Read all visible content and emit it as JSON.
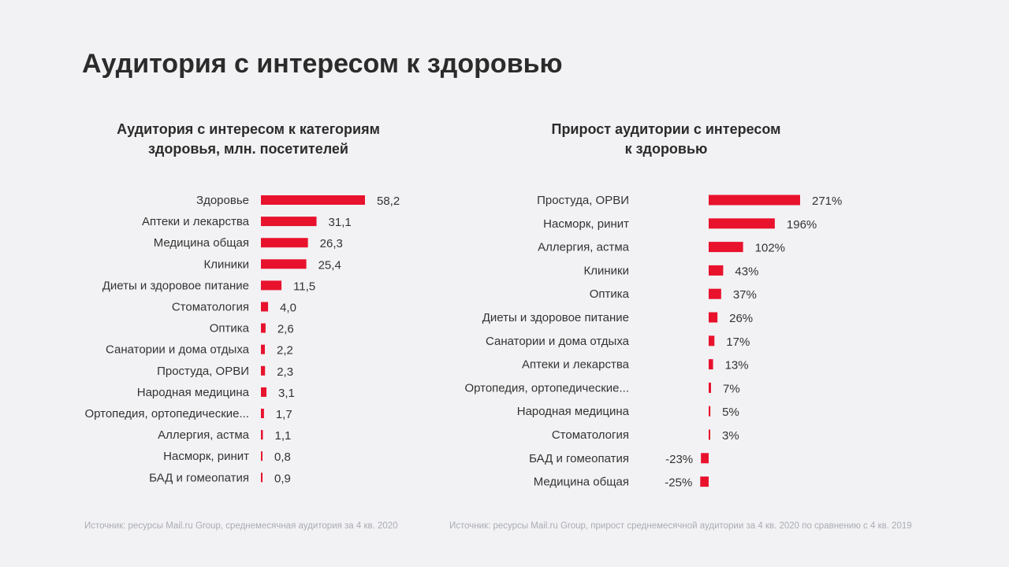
{
  "title": "Аудитория с интересом к здоровью",
  "colors": {
    "bar": "#e8122d",
    "background": "#f2f2f4"
  },
  "chart_data": [
    {
      "type": "bar",
      "orientation": "horizontal",
      "title": "Аудитория с интересом к категориям здоровья, млн. посетителей",
      "title_lines": [
        "Аудитория с интересом к категориям",
        "здоровья, млн. посетителей"
      ],
      "categories": [
        "Здоровье",
        "Аптеки и лекарства",
        "Медицина общая",
        "Клиники",
        "Диеты и здоровое питание",
        "Стоматология",
        "Оптика",
        "Санатории и дома отдыха",
        "Простуда, ОРВИ",
        "Народная медицина",
        "Ортопедия, ортопедические...",
        "Аллергия, астма",
        "Насморк, ринит",
        "БАД и гомеопатия"
      ],
      "values": [
        58.2,
        31.1,
        26.3,
        25.4,
        11.5,
        4.0,
        2.6,
        2.2,
        2.3,
        3.1,
        1.7,
        1.1,
        0.8,
        0.9
      ],
      "labels": [
        "58,2",
        "31,1",
        "26,3",
        "25,4",
        "11,5",
        "4,0",
        "2,6",
        "2,2",
        "2,3",
        "3,1",
        "1,7",
        "1,1",
        "0,8",
        "0,9"
      ],
      "grid": false,
      "source": "Источник: ресурсы Mail.ru Group, среднемесячная аудитория за 4 кв. 2020"
    },
    {
      "type": "bar",
      "orientation": "horizontal",
      "title": "Прирост аудитории с интересом к здоровью",
      "title_lines": [
        "Прирост аудитории с интересом",
        "к здоровью"
      ],
      "categories": [
        "Простуда, ОРВИ",
        "Насморк, ринит",
        "Аллергия, астма",
        "Клиники",
        "Оптика",
        "Диеты и здоровое питание",
        "Санатории и дома отдыха",
        "Аптеки и лекарства",
        "Ортопедия, ортопедические...",
        "Народная медицина",
        "Стоматология",
        "БАД и гомеопатия",
        "Медицина общая"
      ],
      "values": [
        271,
        196,
        102,
        43,
        37,
        26,
        17,
        13,
        7,
        5,
        3,
        -23,
        -25
      ],
      "labels": [
        "271%",
        "196%",
        "102%",
        "43%",
        "37%",
        "26%",
        "17%",
        "13%",
        "7%",
        "5%",
        "3%",
        "-23%",
        "-25%"
      ],
      "grid": false,
      "source": "Источник: ресурсы Mail.ru Group, прирост среднемесячной аудитории за 4 кв. 2020 по сравнению с 4 кв. 2019"
    }
  ]
}
